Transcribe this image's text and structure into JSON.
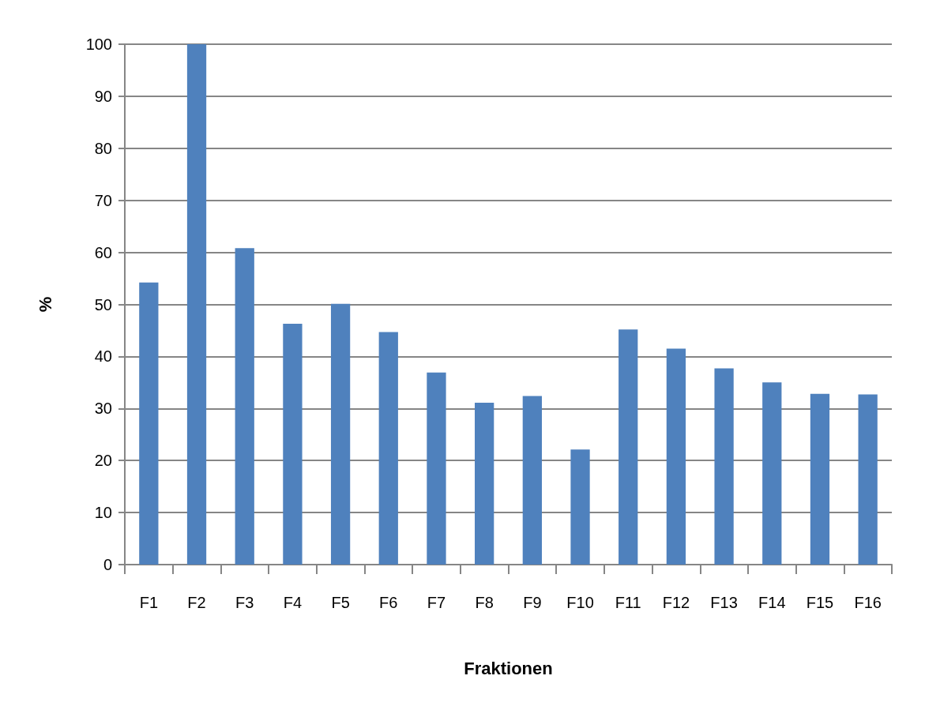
{
  "chart_data": {
    "type": "bar",
    "xlabel": "Fraktionen",
    "ylabel": "%",
    "categories": [
      "F1",
      "F2",
      "F3",
      "F4",
      "F5",
      "F6",
      "F7",
      "F8",
      "F9",
      "F10",
      "F11",
      "F12",
      "F13",
      "F14",
      "F15",
      "F16"
    ],
    "values": [
      54.2,
      100,
      60.8,
      46.3,
      50.1,
      44.7,
      36.9,
      31.1,
      32.4,
      22.1,
      45.2,
      41.5,
      37.7,
      35.0,
      32.8,
      32.7
    ],
    "color": "#4f81bd",
    "ylim": [
      0,
      100
    ],
    "yticks": [
      0,
      10,
      20,
      30,
      40,
      50,
      60,
      70,
      80,
      90,
      100
    ],
    "grid": "y"
  }
}
